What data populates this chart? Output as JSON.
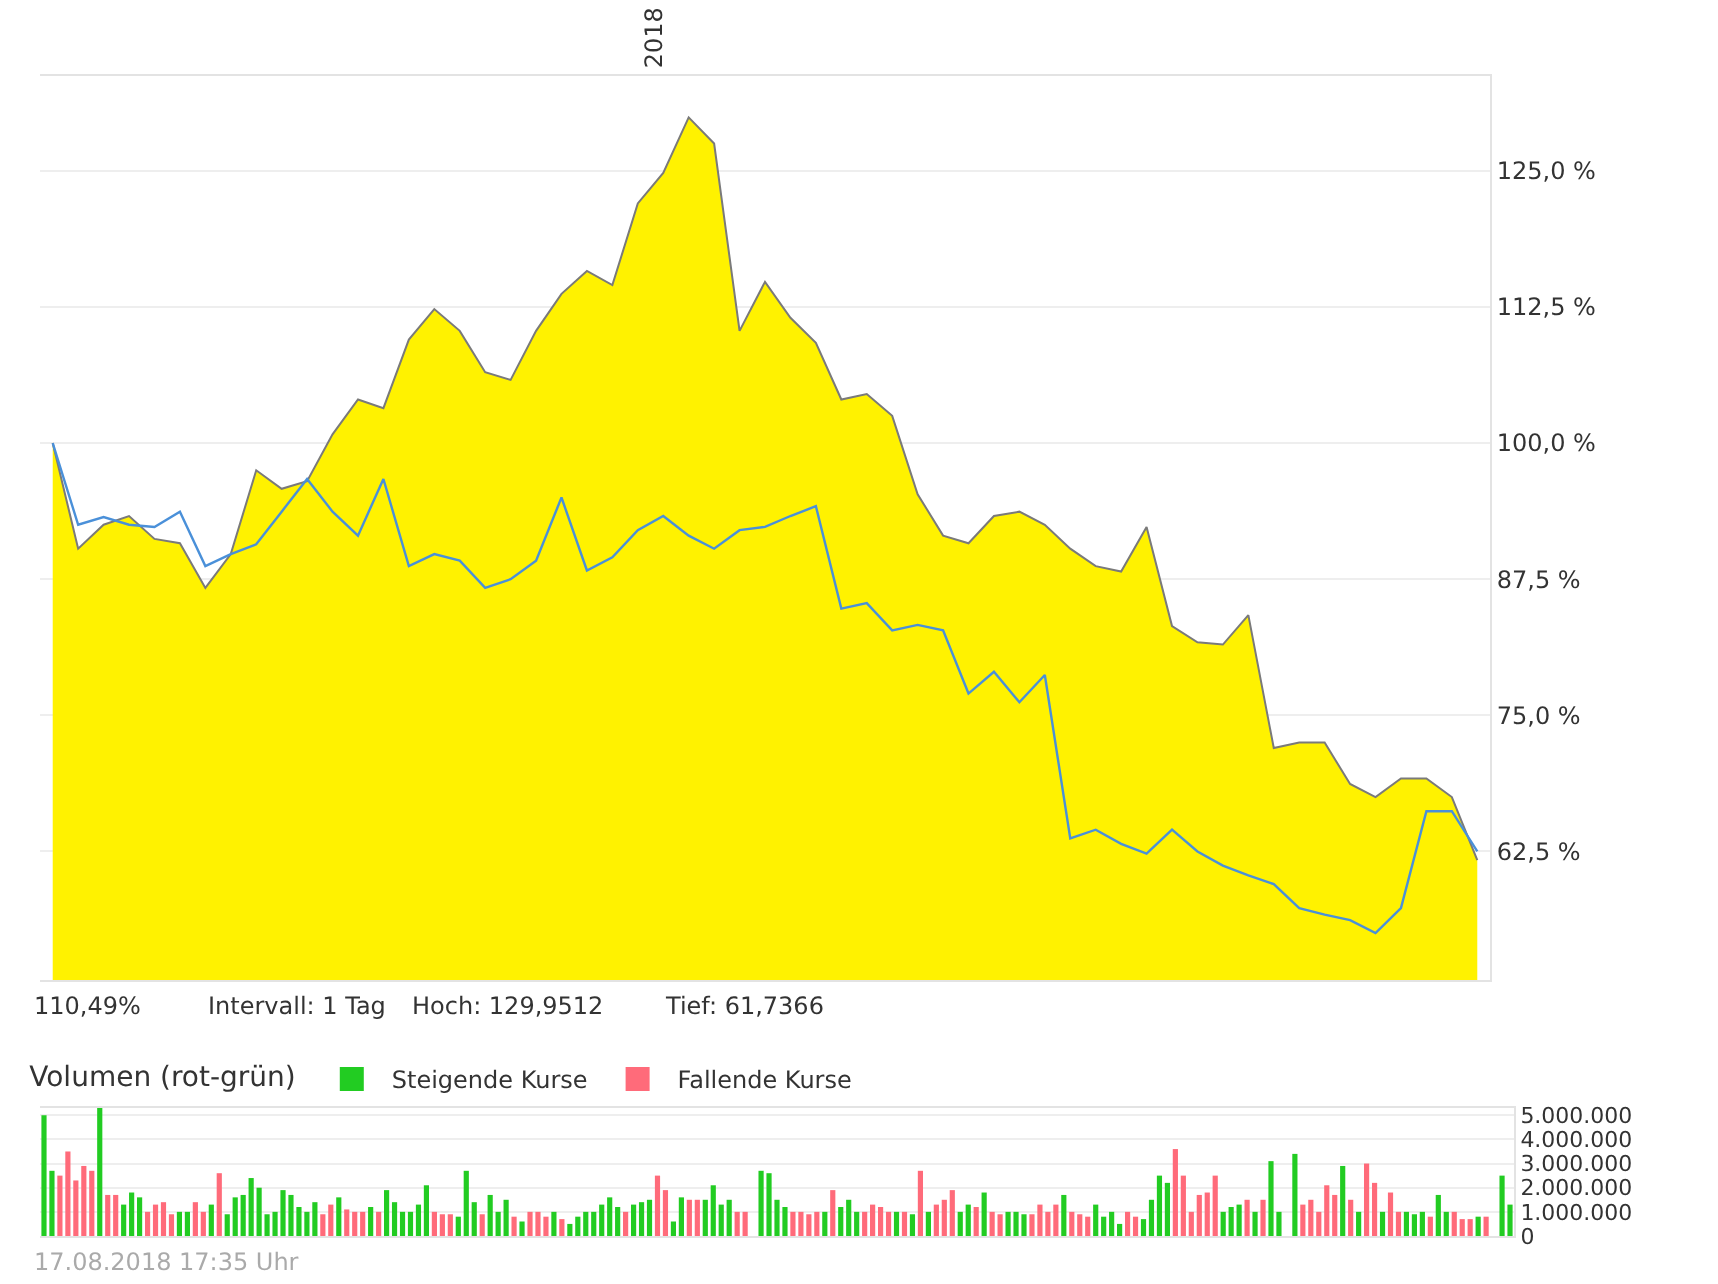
{
  "chart_data": [
    {
      "type": "area",
      "categories": [
        null,
        null,
        null,
        null,
        null,
        null,
        null,
        null,
        null,
        null,
        null,
        null,
        null,
        null,
        null,
        null,
        null,
        null,
        null,
        null,
        null,
        null,
        null,
        null,
        null,
        null,
        null,
        null,
        null,
        null,
        null,
        null,
        null,
        null,
        null,
        null,
        null,
        null,
        null,
        null,
        null,
        null,
        null,
        null,
        null,
        null,
        null,
        null,
        null,
        null,
        null,
        null,
        null,
        null,
        null,
        null,
        null
      ],
      "series": [
        {
          "type": "area",
          "color": "#fff200",
          "values": [
            100,
            90.3,
            92.5,
            93.3,
            91.2,
            90.8,
            86.7,
            89.8,
            97.5,
            95.8,
            96.5,
            100.8,
            104,
            103.2,
            109.5,
            112.3,
            110.3,
            106.5,
            105.8,
            110.3,
            113.7,
            115.8,
            114.5,
            122,
            124.8,
            129.9,
            127.5,
            110.3,
            114.8,
            111.5,
            109.2,
            104,
            104.5,
            102.5,
            95.3,
            91.5,
            90.8,
            93.3,
            93.7,
            92.5,
            90.3,
            88.7,
            88.2,
            92.3,
            83.2,
            81.7,
            81.5,
            84.2,
            72,
            72.5,
            72.5,
            68.7,
            67.5,
            69.2,
            69.2,
            67.5,
            61.7
          ]
        },
        {
          "type": "line",
          "color": "#4a90d9",
          "values": [
            100,
            92.5,
            93.2,
            92.5,
            92.3,
            93.7,
            88.7,
            89.8,
            90.7,
            93.7,
            96.7,
            93.7,
            91.5,
            96.7,
            88.7,
            89.8,
            89.2,
            86.7,
            87.5,
            89.2,
            95,
            88.3,
            89.5,
            92,
            93.3,
            91.5,
            90.3,
            92,
            92.3,
            93.3,
            94.2,
            84.8,
            85.3,
            82.8,
            83.3,
            82.8,
            77,
            79,
            76.2,
            78.7,
            63.7,
            64.5,
            63.2,
            62.3,
            64.5,
            62.5,
            61.2,
            60.3,
            59.5,
            57.3,
            56.7,
            56.2,
            55,
            57.3,
            66.2,
            66.2,
            62.5
          ]
        }
      ],
      "ylim": [
        50.7,
        133.7
      ],
      "yticks": [
        {
          "value": 62.5,
          "label": "62,5 %"
        },
        {
          "value": 75,
          "label": "75,0 %"
        },
        {
          "value": 87.5,
          "label": "87,5 %"
        },
        {
          "value": 100,
          "label": "100,0 %"
        },
        {
          "value": 112.5,
          "label": "112,5 %"
        },
        {
          "value": 125,
          "label": "125,0 %"
        }
      ],
      "grid": true,
      "legend": false,
      "annotations": [
        "2018",
        "110,49%",
        "Intervall: 1 Tag",
        "Hoch: 129,9512",
        "Tief: 61,7366"
      ]
    },
    {
      "type": "bar",
      "legend_title": "Volumen (rot-grün)",
      "legend": "top left",
      "grid": "y",
      "tick_labels": "y",
      "categories": [
        null,
        null,
        null,
        null,
        null,
        null,
        null,
        null,
        null,
        null,
        null,
        null,
        null,
        null,
        null,
        null,
        null,
        null,
        null,
        null,
        null,
        null,
        null,
        null,
        null,
        null,
        null,
        null,
        null,
        null,
        null,
        null,
        null,
        null,
        null,
        null,
        null,
        null,
        null,
        null,
        null,
        null,
        null,
        null,
        null,
        null,
        null,
        null,
        null,
        null,
        null,
        null,
        null,
        null,
        null,
        null,
        null,
        null,
        null,
        null,
        null,
        null,
        null,
        null,
        null,
        null,
        null,
        null,
        null,
        null,
        null,
        null,
        null,
        null,
        null,
        null,
        null,
        null,
        null,
        null,
        null,
        null,
        null,
        null,
        null,
        null,
        null,
        null,
        null,
        null,
        null,
        null,
        null,
        null,
        null,
        null,
        null,
        null,
        null,
        null,
        null,
        null,
        null,
        null,
        null,
        null,
        null,
        null,
        null,
        null,
        null,
        null,
        null,
        null,
        null,
        null,
        null,
        null,
        null,
        null,
        null,
        null,
        null,
        null,
        null,
        null,
        null,
        null,
        null,
        null,
        null,
        null,
        null,
        null,
        null,
        null,
        null,
        null,
        null,
        null,
        null,
        null,
        null,
        null,
        null,
        null,
        null,
        null,
        null,
        null,
        null,
        null,
        null,
        null,
        null,
        null,
        null,
        null,
        null,
        null,
        null,
        null,
        null,
        null,
        null,
        null,
        null,
        null,
        null,
        null,
        null,
        null,
        null,
        null,
        null,
        null,
        null,
        null,
        null,
        null,
        null,
        null,
        null,
        null,
        null
      ],
      "series": [
        {
          "name": "Steigende Kurse",
          "color": "#22cc22",
          "values": [
            5000000,
            2700000,
            null,
            null,
            null,
            null,
            null,
            5300000,
            null,
            null,
            1300000,
            1800000,
            1600000,
            null,
            null,
            null,
            null,
            1000000,
            1000000,
            null,
            null,
            1300000,
            null,
            900000,
            1600000,
            1700000,
            2400000,
            2000000,
            900000,
            1000000,
            1900000,
            1700000,
            1200000,
            1000000,
            1400000,
            null,
            null,
            1600000,
            null,
            null,
            null,
            1200000,
            null,
            1900000,
            1400000,
            1000000,
            1000000,
            1300000,
            2100000,
            null,
            null,
            null,
            800000,
            2700000,
            1400000,
            null,
            1700000,
            1000000,
            1500000,
            null,
            600000,
            null,
            null,
            null,
            1000000,
            null,
            500000,
            800000,
            1000000,
            1000000,
            1300000,
            1600000,
            1200000,
            null,
            1300000,
            1400000,
            1500000,
            null,
            null,
            600000,
            1600000,
            null,
            null,
            1500000,
            2100000,
            1300000,
            1500000,
            null,
            null,
            null,
            2700000,
            2600000,
            1500000,
            1200000,
            null,
            null,
            null,
            null,
            1000000,
            null,
            1200000,
            1500000,
            1000000,
            null,
            null,
            null,
            null,
            1000000,
            null,
            900000,
            null,
            1000000,
            null,
            null,
            null,
            1000000,
            1300000,
            null,
            1800000,
            null,
            null,
            1000000,
            1000000,
            900000,
            null,
            null,
            null,
            null,
            1700000,
            null,
            null,
            null,
            1300000,
            800000,
            1000000,
            500000,
            null,
            null,
            700000,
            1500000,
            2500000,
            2200000,
            null,
            null,
            null,
            null,
            null,
            null,
            1000000,
            1200000,
            1300000,
            null,
            1000000,
            null,
            3100000,
            1000000,
            null,
            3400000,
            null,
            null,
            null,
            null,
            null,
            2900000,
            null,
            1000000,
            null,
            null,
            1000000,
            null,
            null,
            1000000,
            900000,
            1000000,
            null,
            1700000,
            1000000,
            null,
            null,
            null,
            800000,
            null,
            null,
            2500000,
            1300000
          ]
        },
        {
          "name": "Fallende Kurse",
          "color": "#ff6b7a",
          "values": [
            null,
            null,
            2500000,
            3500000,
            2300000,
            2900000,
            2700000,
            null,
            1700000,
            1700000,
            null,
            null,
            null,
            1000000,
            1300000,
            1400000,
            900000,
            null,
            null,
            1400000,
            1000000,
            null,
            2600000,
            null,
            null,
            null,
            null,
            null,
            null,
            null,
            null,
            null,
            null,
            null,
            null,
            900000,
            1300000,
            null,
            1100000,
            1000000,
            1000000,
            null,
            1000000,
            null,
            null,
            null,
            null,
            null,
            null,
            1000000,
            900000,
            900000,
            null,
            null,
            null,
            900000,
            null,
            null,
            null,
            800000,
            null,
            1000000,
            1000000,
            800000,
            null,
            700000,
            null,
            null,
            null,
            null,
            null,
            null,
            null,
            1000000,
            null,
            null,
            null,
            2500000,
            1900000,
            null,
            null,
            1500000,
            1500000,
            null,
            null,
            null,
            null,
            1000000,
            1000000,
            null,
            null,
            null,
            null,
            null,
            1000000,
            1000000,
            900000,
            1000000,
            null,
            1900000,
            null,
            null,
            null,
            1000000,
            1300000,
            1200000,
            1000000,
            null,
            1000000,
            null,
            2700000,
            null,
            1300000,
            1500000,
            1900000,
            null,
            null,
            1200000,
            null,
            1000000,
            900000,
            null,
            null,
            null,
            900000,
            1300000,
            1000000,
            1300000,
            null,
            1000000,
            900000,
            800000,
            null,
            null,
            null,
            null,
            1000000,
            800000,
            null,
            null,
            null,
            null,
            3600000,
            2500000,
            1000000,
            1700000,
            1800000,
            2500000,
            null,
            null,
            null,
            1500000,
            null,
            1500000,
            null,
            null,
            null,
            null,
            1300000,
            1500000,
            1000000,
            2100000,
            1700000,
            null,
            1500000,
            null,
            3000000,
            2200000,
            null,
            1800000,
            1000000,
            null,
            null,
            null,
            800000,
            null,
            null,
            1000000,
            700000,
            700000,
            null,
            800000,
            null,
            null,
            null
          ]
        }
      ],
      "ylim": [
        0,
        5300000
      ],
      "yticks": [
        0,
        {
          "value": 1000000,
          "label": "1.000.000"
        },
        {
          "value": 2000000,
          "label": "2.000.000"
        },
        {
          "value": 3000000,
          "label": "3.000.000"
        },
        {
          "value": 4000000,
          "label": "4.000.000"
        },
        {
          "value": 5000000,
          "label": "5.000.000"
        }
      ],
      "annotations": [
        "17.08.2018 17:35 Uhr"
      ]
    }
  ]
}
